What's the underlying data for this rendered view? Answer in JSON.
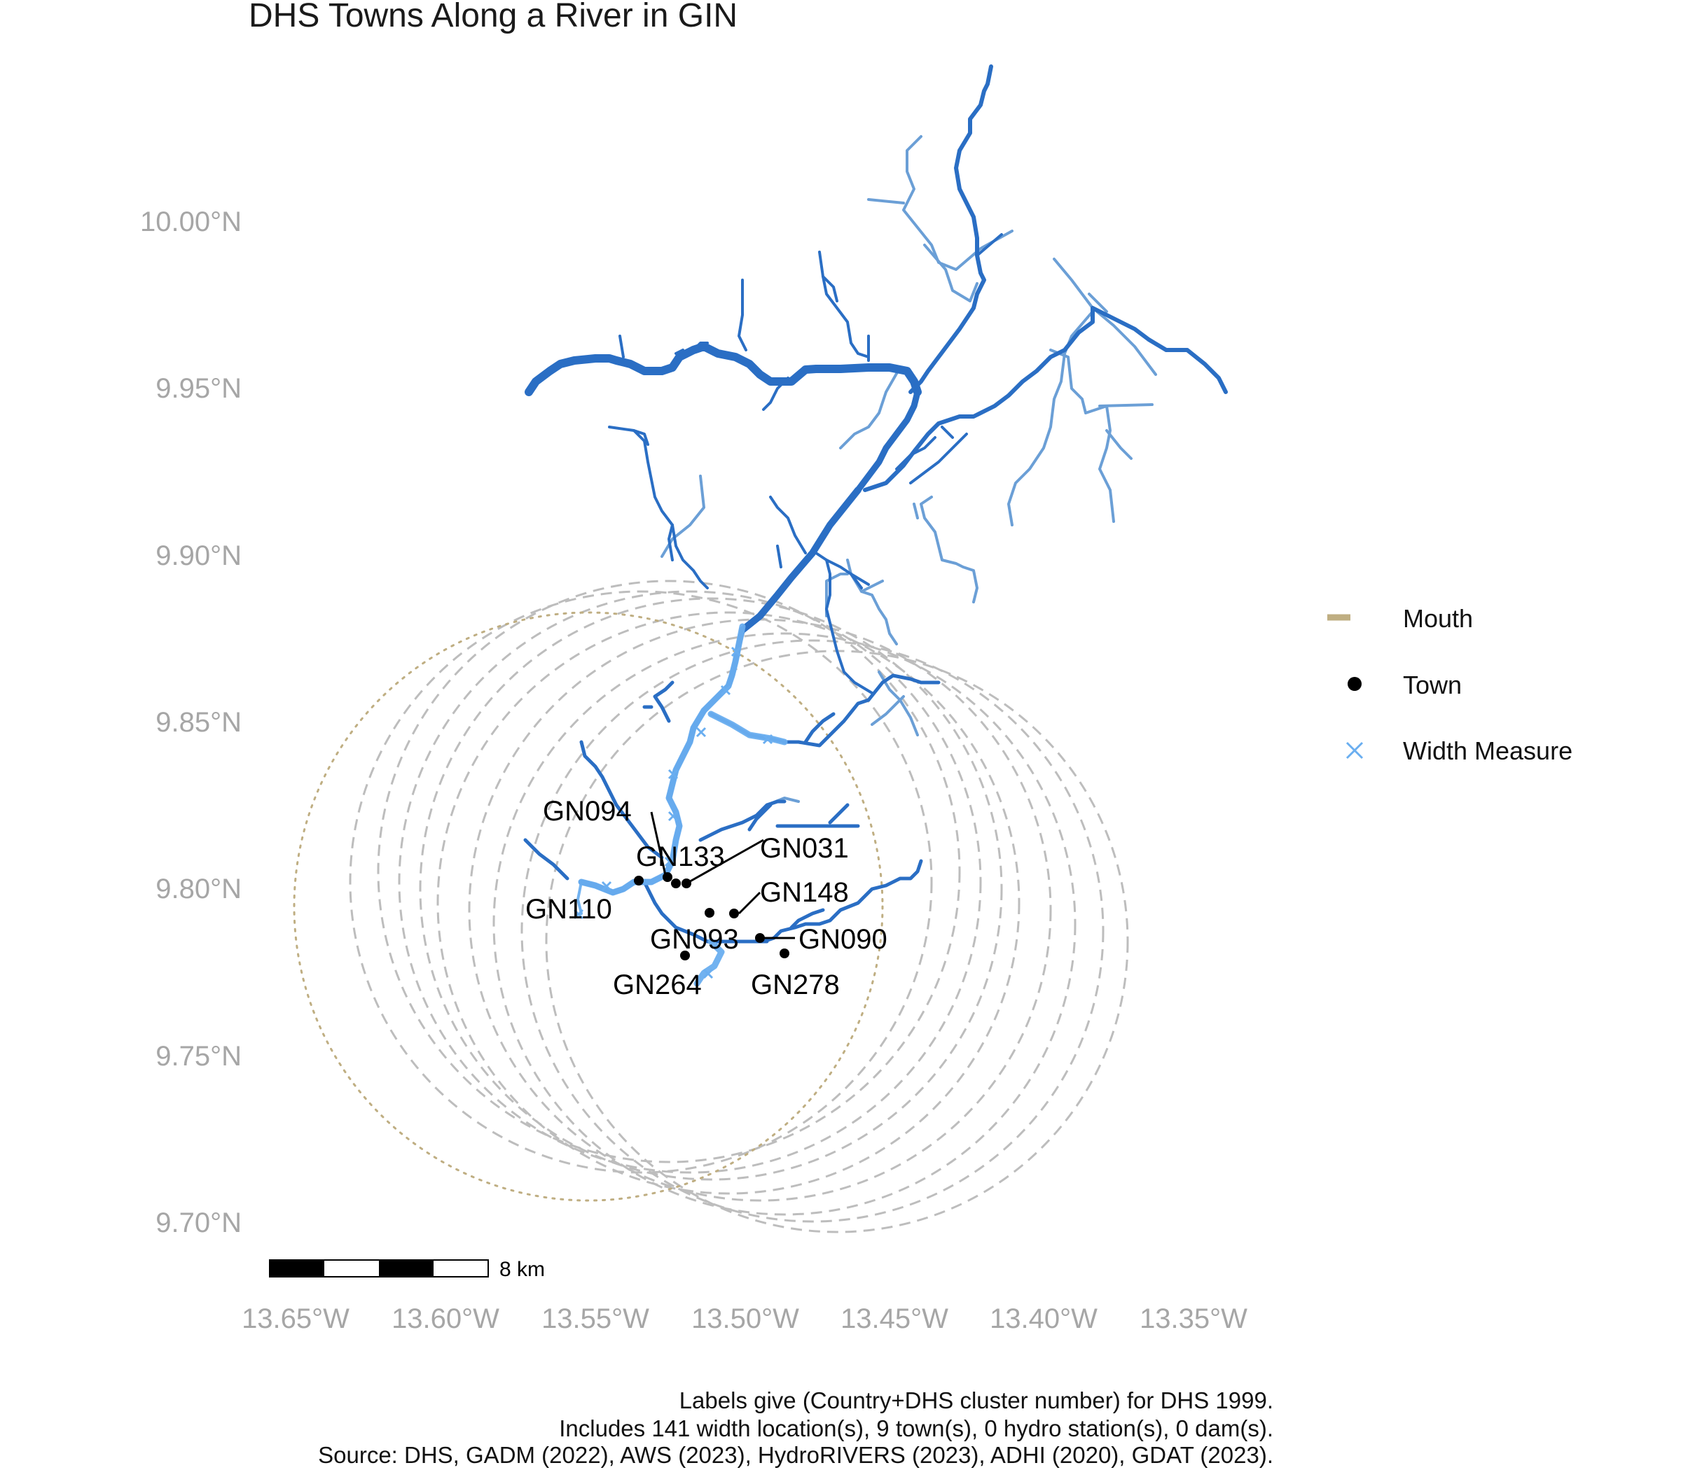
{
  "title": "DHS Towns Along a River in GIN",
  "axes": {
    "y_ticks": [
      "10.00°N",
      "9.95°N",
      "9.90°N",
      "9.85°N",
      "9.80°N",
      "9.75°N",
      "9.70°N"
    ],
    "x_ticks": [
      "13.65°W",
      "13.60°W",
      "13.55°W",
      "13.50°W",
      "13.45°W",
      "13.40°W",
      "13.35°W"
    ]
  },
  "legend": {
    "mouth": "Mouth",
    "town": "Town",
    "width": "Width Measure"
  },
  "towns": [
    "GN094",
    "GN133",
    "GN031",
    "GN110",
    "GN148",
    "GN093",
    "GN090",
    "GN264",
    "GN278"
  ],
  "scale_bar": {
    "label": "8 km"
  },
  "caption": {
    "line1": "Labels give (Country+DHS cluster number) for DHS 1999.",
    "line2": "Includes 141 width location(s), 9 town(s), 0 hydro station(s), 0 dam(s).",
    "line3": "Source: DHS, GADM (2022), AWS (2023), HydroRIVERS (2023), ADHI (2020), GDAT (2023)."
  },
  "colors": {
    "river_main": "#2a6ec4",
    "river_minor": "#6b9fd6",
    "width_measure": "#6aaef0",
    "mouth": "#bfae82",
    "buffer": "#bdbdbd",
    "town": "#000000"
  }
}
